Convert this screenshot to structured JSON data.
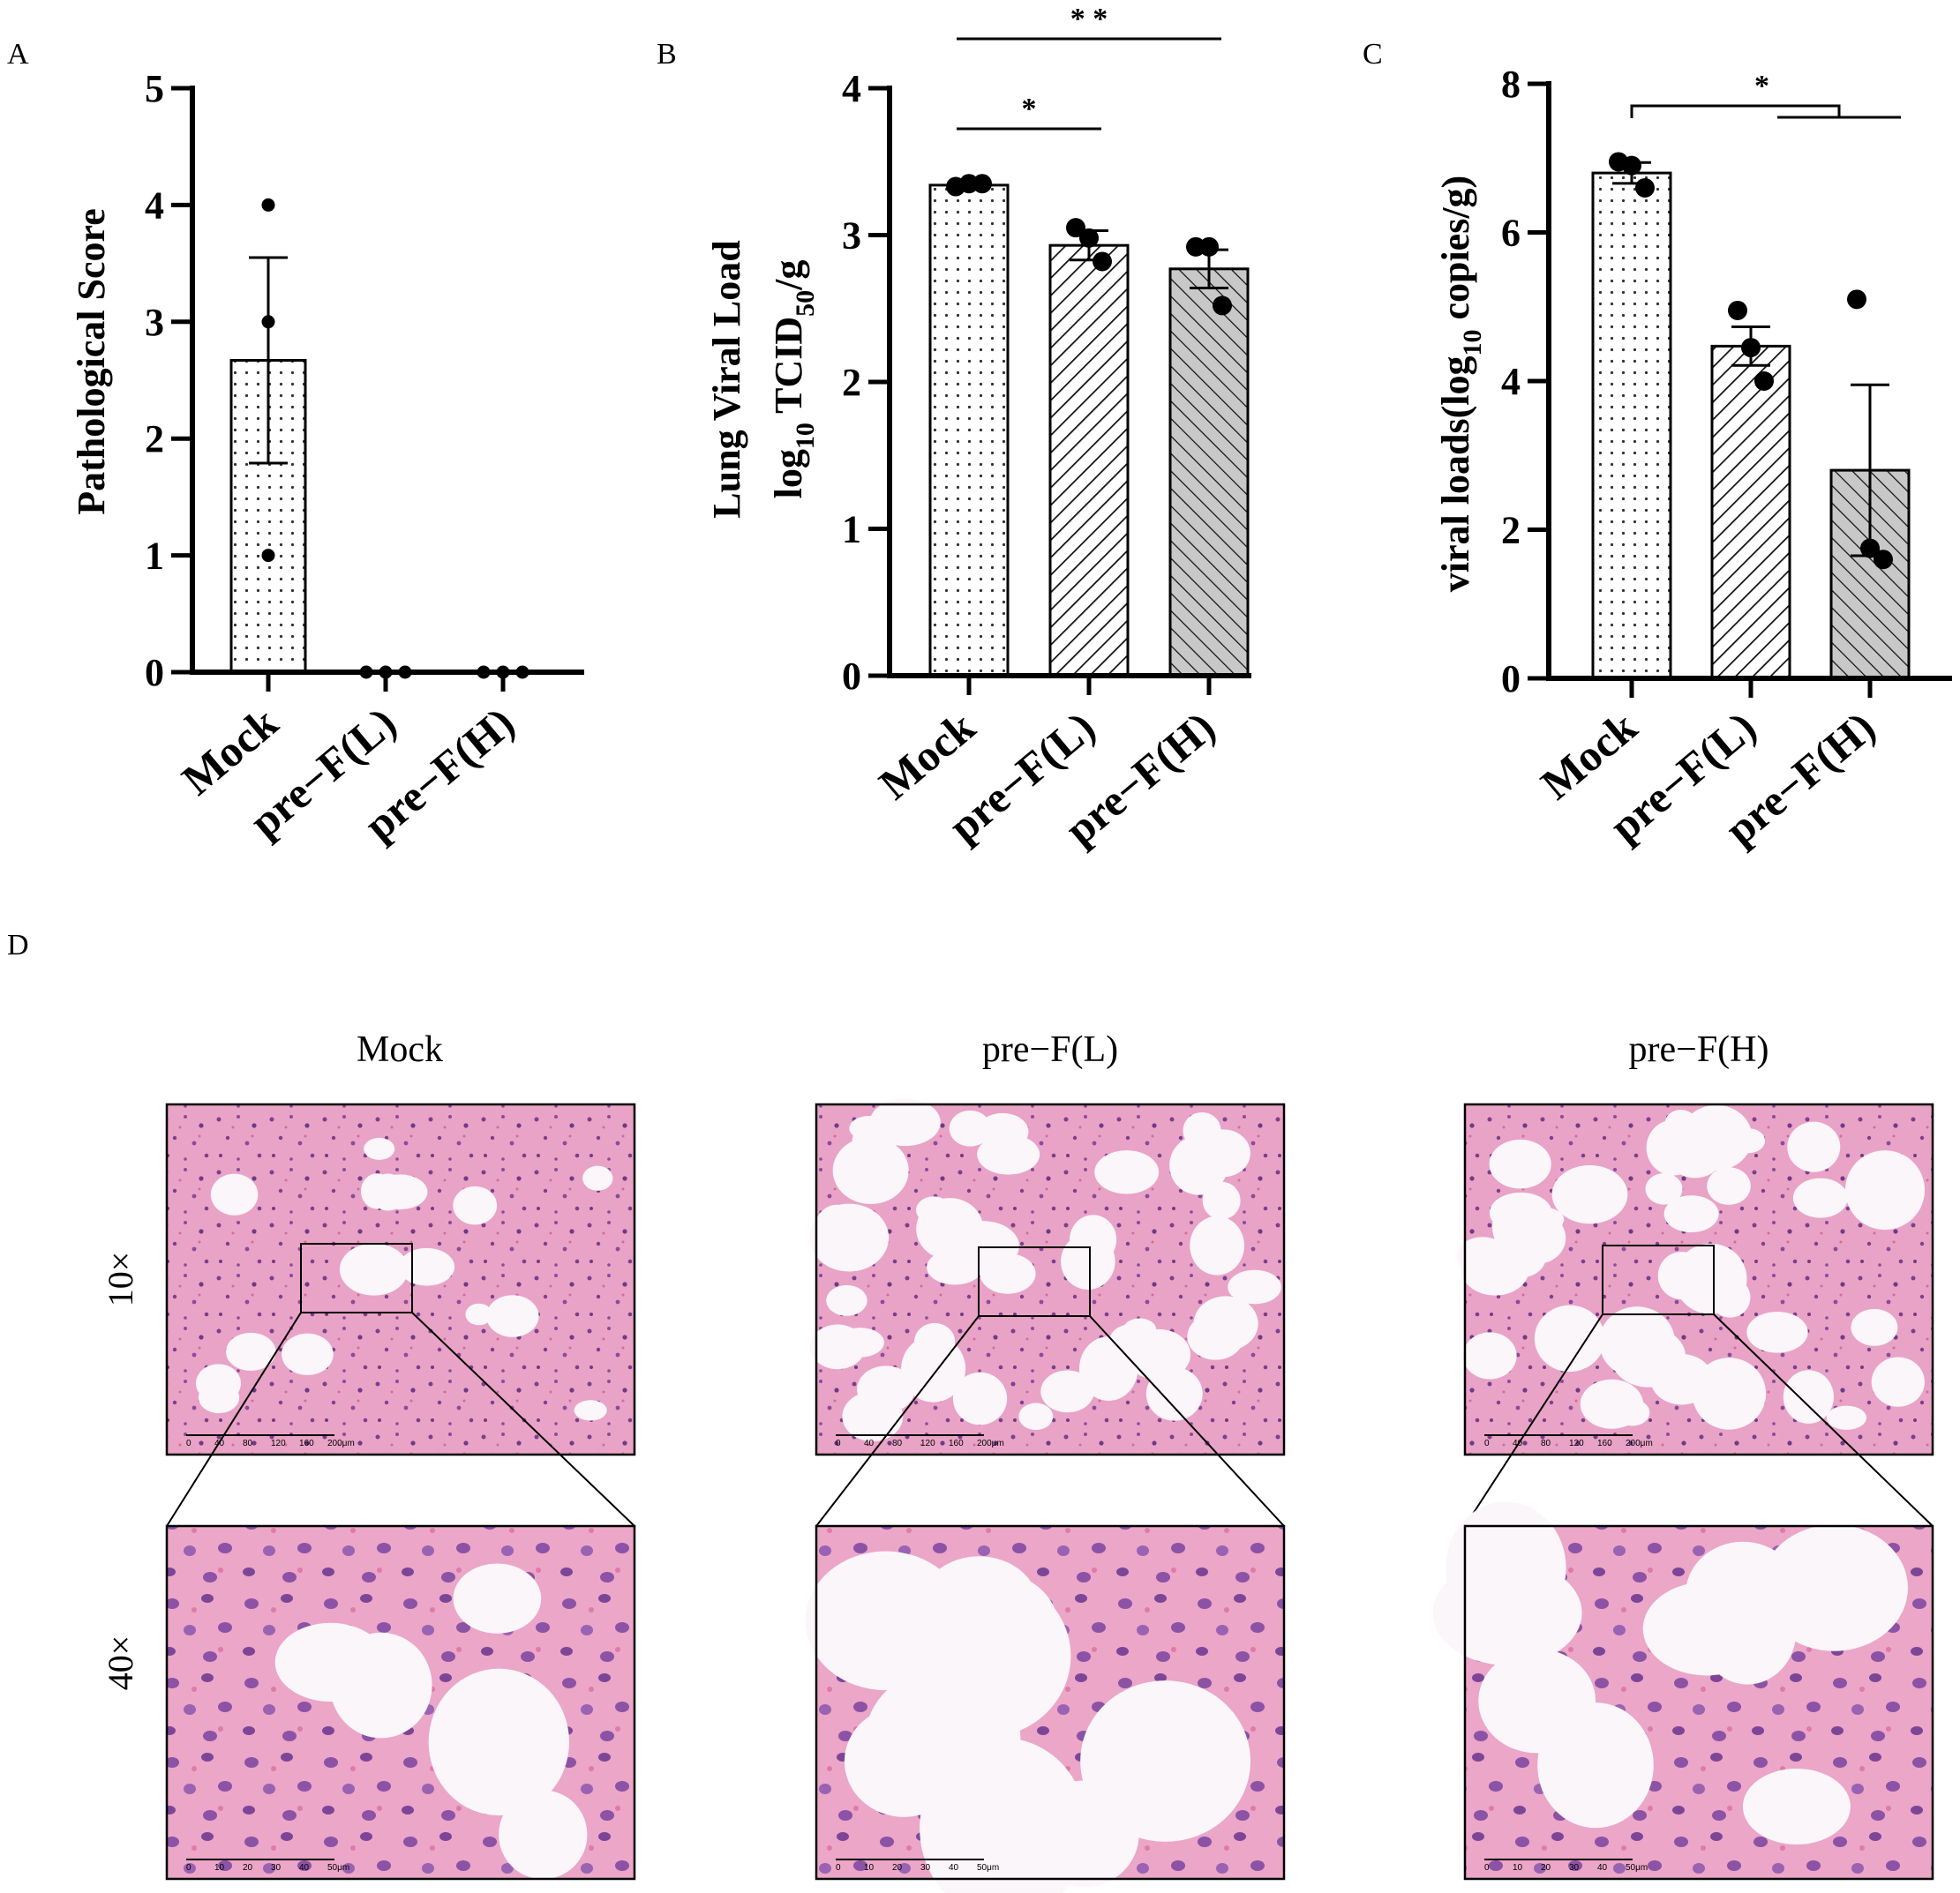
{
  "panel_labels": [
    "A",
    "B",
    "C",
    "D"
  ],
  "chart_data": [
    {
      "type": "bar",
      "panel": "A",
      "title": "",
      "ylabel": "Pathological Score",
      "xlabel": "",
      "categories": [
        "Mock",
        "pre−F(L)",
        "pre−F(H)"
      ],
      "ylim": [
        0,
        5
      ],
      "yticks": [
        "0",
        "1",
        "2",
        "3",
        "4",
        "5"
      ],
      "values": [
        2.67,
        0,
        0
      ],
      "sem": [
        0.88,
        0,
        0
      ],
      "points": [
        [
          4,
          3,
          1
        ],
        [
          0,
          0,
          0
        ],
        [
          0,
          0,
          0
        ]
      ],
      "significance": []
    },
    {
      "type": "bar",
      "panel": "B",
      "title": "",
      "ylabel_line1": "Lung Viral Load",
      "ylabel_line2_pre": "log",
      "ylabel_line2_sub1": "10",
      "ylabel_line2_mid": " TCID",
      "ylabel_line2_sub2": "50",
      "ylabel_line2_post": "/g",
      "xlabel": "",
      "categories": [
        "Mock",
        "pre−F(L)",
        "pre−F(H)"
      ],
      "ylim": [
        0,
        4
      ],
      "yticks": [
        "0",
        "1",
        "2",
        "3",
        "4"
      ],
      "values": [
        3.34,
        2.93,
        2.77
      ],
      "sem": [
        0.01,
        0.1,
        0.13
      ],
      "points": [
        [
          3.33,
          3.35,
          3.35
        ],
        [
          3.05,
          2.98,
          2.82
        ],
        [
          2.92,
          2.92,
          2.52
        ]
      ],
      "significance": [
        {
          "from": 0,
          "to": 1,
          "label": "*"
        },
        {
          "from": 0,
          "to": 2,
          "label": "* *"
        }
      ]
    },
    {
      "type": "bar",
      "panel": "C",
      "title": "",
      "ylabel_pre": "viral loads(log",
      "ylabel_sub": "10",
      "ylabel_post": " copies/g)",
      "xlabel": "",
      "categories": [
        "Mock",
        "pre−F(L)",
        "pre−F(H)"
      ],
      "ylim": [
        0,
        8
      ],
      "yticks": [
        "0",
        "2",
        "4",
        "6",
        "8"
      ],
      "values": [
        6.8,
        4.47,
        2.8
      ],
      "sem": [
        0.14,
        0.26,
        1.15
      ],
      "points": [
        [
          6.95,
          6.9,
          6.6
        ],
        [
          4.95,
          4.45,
          4.0
        ],
        [
          5.1,
          1.75,
          1.6
        ]
      ],
      "significance": [
        {
          "from": 0,
          "to": [
            1,
            2
          ],
          "label": "*"
        }
      ]
    }
  ],
  "histology": {
    "panel": "D",
    "columns": [
      "Mock",
      "pre−F(L)",
      "pre−F(H)"
    ],
    "rows": [
      "10×",
      "40×"
    ],
    "scalebar_10x": [
      "0",
      "40",
      "80",
      "120",
      "160",
      "200μm"
    ],
    "scalebar_40x": [
      "0",
      "10",
      "20",
      "30",
      "40",
      "50μm"
    ]
  }
}
